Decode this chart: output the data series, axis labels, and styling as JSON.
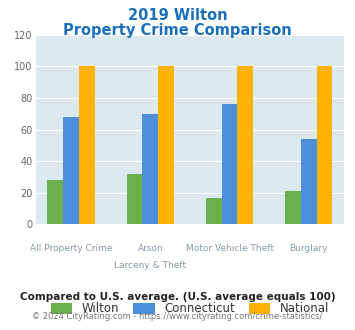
{
  "title_line1": "2019 Wilton",
  "title_line2": "Property Crime Comparison",
  "title_color": "#1a6fbd",
  "wilton": [
    28,
    32,
    17,
    21
  ],
  "connecticut": [
    68,
    70,
    76,
    54
  ],
  "national": [
    100,
    100,
    100,
    100
  ],
  "wilton_color": "#6ab04c",
  "connecticut_color": "#4d8fda",
  "national_color": "#ffb300",
  "ylim": [
    0,
    120
  ],
  "yticks": [
    0,
    20,
    40,
    60,
    80,
    100,
    120
  ],
  "bg_color": "#dce9f0",
  "legend_labels": [
    "Wilton",
    "Connecticut",
    "National"
  ],
  "top_labels": [
    "",
    "Arson",
    "Motor Vehicle Theft",
    ""
  ],
  "bottom_labels": [
    "All Property Crime",
    "Larceny & Theft",
    "",
    "Burglary"
  ],
  "label_color": "#8899aa",
  "footnote1": "Compared to U.S. average. (U.S. average equals 100)",
  "footnote2": "© 2024 CityRating.com - https://www.cityrating.com/crime-statistics/",
  "footnote1_color": "#222222",
  "footnote2_color": "#777777",
  "footnote2_link_color": "#3377cc"
}
